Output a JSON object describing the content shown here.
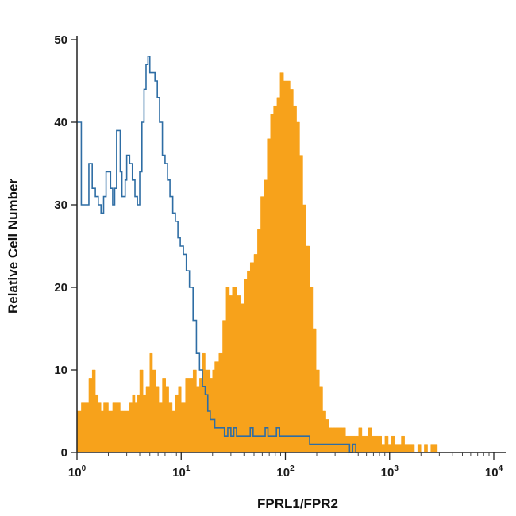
{
  "chart_data": {
    "type": "histogram",
    "title": "",
    "xlabel": "FPRL1/FPR2",
    "ylabel": "Relative Cell Number",
    "xscale": "log",
    "xlim": [
      1,
      10000
    ],
    "ylim": [
      0,
      50
    ],
    "grid": false,
    "y_ticks": [
      {
        "value": 0,
        "label": "0"
      },
      {
        "value": 10,
        "label": "10"
      },
      {
        "value": 20,
        "label": "20"
      },
      {
        "value": 30,
        "label": "30"
      },
      {
        "value": 40,
        "label": "40"
      },
      {
        "value": 50,
        "label": "50"
      }
    ],
    "x_ticks": [
      {
        "value": 1,
        "base": "10",
        "exp": "0"
      },
      {
        "value": 10,
        "base": "10",
        "exp": "1"
      },
      {
        "value": 100,
        "base": "10",
        "exp": "2"
      },
      {
        "value": 1000,
        "base": "10",
        "exp": "3"
      },
      {
        "value": 10000,
        "base": "10",
        "exp": "4"
      }
    ],
    "series": [
      {
        "style": "filled",
        "color": "#F7A21B",
        "points": [
          [
            1.0,
            5
          ],
          [
            1.1,
            6
          ],
          [
            1.2,
            6
          ],
          [
            1.3,
            9
          ],
          [
            1.4,
            10
          ],
          [
            1.5,
            7
          ],
          [
            1.6,
            6
          ],
          [
            1.7,
            5
          ],
          [
            1.8,
            6
          ],
          [
            1.9,
            6
          ],
          [
            2.0,
            5
          ],
          [
            2.2,
            6
          ],
          [
            2.4,
            6
          ],
          [
            2.6,
            5
          ],
          [
            2.8,
            5
          ],
          [
            3.0,
            5
          ],
          [
            3.2,
            6
          ],
          [
            3.4,
            7
          ],
          [
            3.6,
            6
          ],
          [
            3.8,
            7
          ],
          [
            4.0,
            10
          ],
          [
            4.3,
            7
          ],
          [
            4.6,
            8
          ],
          [
            5.0,
            12
          ],
          [
            5.3,
            10
          ],
          [
            5.7,
            8
          ],
          [
            6.1,
            6
          ],
          [
            6.6,
            9
          ],
          [
            7.1,
            8
          ],
          [
            7.6,
            6
          ],
          [
            8.2,
            5
          ],
          [
            8.8,
            7
          ],
          [
            9.4,
            8
          ],
          [
            10,
            6
          ],
          [
            11,
            9
          ],
          [
            12,
            9
          ],
          [
            13,
            10
          ],
          [
            14,
            8
          ],
          [
            15,
            9
          ],
          [
            16,
            12
          ],
          [
            17,
            10
          ],
          [
            18,
            10
          ],
          [
            19,
            9
          ],
          [
            20,
            10
          ],
          [
            21,
            11
          ],
          [
            23,
            12
          ],
          [
            25,
            16
          ],
          [
            27,
            20
          ],
          [
            29,
            19
          ],
          [
            31,
            20
          ],
          [
            34,
            19
          ],
          [
            37,
            18
          ],
          [
            40,
            21
          ],
          [
            43,
            22
          ],
          [
            46,
            23
          ],
          [
            50,
            24
          ],
          [
            54,
            27
          ],
          [
            58,
            31
          ],
          [
            62,
            33
          ],
          [
            67,
            38
          ],
          [
            72,
            41
          ],
          [
            77,
            42
          ],
          [
            83,
            43
          ],
          [
            89,
            46
          ],
          [
            96,
            45
          ],
          [
            103,
            45
          ],
          [
            111,
            44
          ],
          [
            119,
            42
          ],
          [
            128,
            40
          ],
          [
            137,
            36
          ],
          [
            147,
            30
          ],
          [
            158,
            25
          ],
          [
            170,
            20
          ],
          [
            183,
            15
          ],
          [
            197,
            10
          ],
          [
            212,
            8
          ],
          [
            228,
            5
          ],
          [
            245,
            4
          ],
          [
            263,
            3
          ],
          [
            283,
            3
          ],
          [
            304,
            3
          ],
          [
            327,
            3
          ],
          [
            352,
            3
          ],
          [
            378,
            2
          ],
          [
            407,
            2
          ],
          [
            437,
            2
          ],
          [
            470,
            2
          ],
          [
            505,
            3
          ],
          [
            543,
            2
          ],
          [
            584,
            2
          ],
          [
            628,
            3
          ],
          [
            675,
            2
          ],
          [
            726,
            2
          ],
          [
            780,
            2
          ],
          [
            839,
            1
          ],
          [
            902,
            2
          ],
          [
            970,
            1
          ],
          [
            1043,
            2
          ],
          [
            1121,
            1
          ],
          [
            1205,
            1
          ],
          [
            1296,
            2
          ],
          [
            1393,
            1
          ],
          [
            1498,
            1
          ],
          [
            1610,
            1
          ],
          [
            1731,
            0
          ],
          [
            1861,
            1
          ],
          [
            2001,
            0
          ],
          [
            2151,
            1
          ],
          [
            2313,
            0
          ],
          [
            2486,
            1
          ],
          [
            2673,
            1
          ],
          [
            2874,
            0
          ],
          [
            3000,
            0
          ]
        ]
      },
      {
        "style": "outline",
        "color": "#2E6DA4",
        "points": [
          [
            1.0,
            40
          ],
          [
            1.1,
            30
          ],
          [
            1.2,
            30
          ],
          [
            1.3,
            35
          ],
          [
            1.4,
            32
          ],
          [
            1.5,
            31
          ],
          [
            1.6,
            30
          ],
          [
            1.7,
            29
          ],
          [
            1.8,
            31
          ],
          [
            1.9,
            34
          ],
          [
            2.0,
            34
          ],
          [
            2.1,
            32
          ],
          [
            2.2,
            30
          ],
          [
            2.3,
            32
          ],
          [
            2.4,
            39
          ],
          [
            2.6,
            34
          ],
          [
            2.7,
            31
          ],
          [
            2.9,
            33
          ],
          [
            3.0,
            36
          ],
          [
            3.2,
            35
          ],
          [
            3.4,
            33
          ],
          [
            3.6,
            31
          ],
          [
            3.8,
            30
          ],
          [
            4.0,
            34
          ],
          [
            4.2,
            40
          ],
          [
            4.4,
            44
          ],
          [
            4.6,
            47
          ],
          [
            4.8,
            48
          ],
          [
            5.0,
            46
          ],
          [
            5.3,
            46
          ],
          [
            5.6,
            45
          ],
          [
            5.9,
            43
          ],
          [
            6.2,
            40
          ],
          [
            6.6,
            36
          ],
          [
            7.0,
            35
          ],
          [
            7.4,
            33
          ],
          [
            7.8,
            31
          ],
          [
            8.3,
            29
          ],
          [
            8.8,
            28
          ],
          [
            9.3,
            26
          ],
          [
            9.8,
            25
          ],
          [
            10.5,
            24
          ],
          [
            11.2,
            22
          ],
          [
            12,
            20
          ],
          [
            13,
            16
          ],
          [
            14,
            12
          ],
          [
            15,
            10
          ],
          [
            16,
            8
          ],
          [
            17,
            7
          ],
          [
            18,
            5
          ],
          [
            19,
            4
          ],
          [
            20,
            4
          ],
          [
            21,
            3
          ],
          [
            22,
            3
          ],
          [
            24,
            3
          ],
          [
            26,
            2
          ],
          [
            28,
            3
          ],
          [
            30,
            2
          ],
          [
            32,
            3
          ],
          [
            34,
            2
          ],
          [
            36,
            2
          ],
          [
            38,
            2
          ],
          [
            40,
            2
          ],
          [
            43,
            2
          ],
          [
            46,
            3
          ],
          [
            49,
            2
          ],
          [
            52,
            2
          ],
          [
            56,
            2
          ],
          [
            60,
            2
          ],
          [
            64,
            3
          ],
          [
            68,
            2
          ],
          [
            72,
            2
          ],
          [
            77,
            2
          ],
          [
            82,
            3
          ],
          [
            88,
            2
          ],
          [
            94,
            2
          ],
          [
            100,
            2
          ],
          [
            107,
            2
          ],
          [
            114,
            2
          ],
          [
            122,
            2
          ],
          [
            131,
            2
          ],
          [
            140,
            2
          ],
          [
            150,
            2
          ],
          [
            160,
            2
          ],
          [
            171,
            1
          ],
          [
            183,
            1
          ],
          [
            196,
            1
          ],
          [
            210,
            1
          ],
          [
            225,
            1
          ],
          [
            240,
            1
          ],
          [
            257,
            1
          ],
          [
            275,
            1
          ],
          [
            295,
            1
          ],
          [
            315,
            1
          ],
          [
            337,
            1
          ],
          [
            361,
            1
          ],
          [
            386,
            1
          ],
          [
            413,
            0
          ],
          [
            442,
            1
          ],
          [
            473,
            0
          ],
          [
            500,
            0
          ]
        ]
      }
    ]
  }
}
